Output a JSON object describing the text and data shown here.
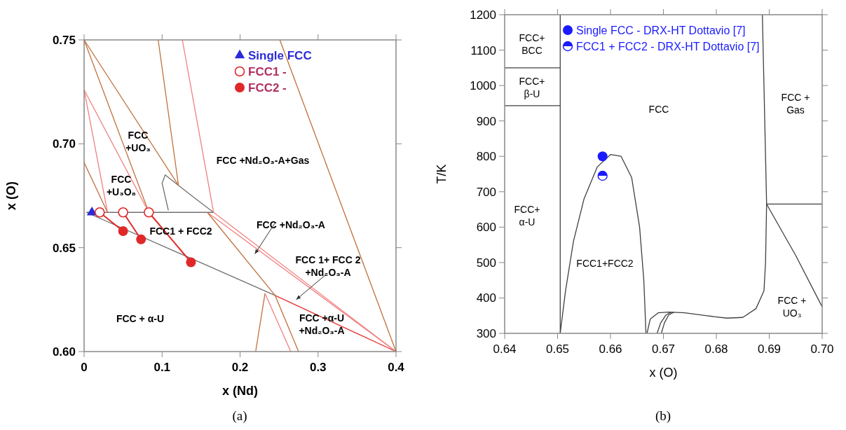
{
  "chart_data": [
    {
      "type": "scatter",
      "xlabel": "x (Nd)",
      "ylabel": "x (O)",
      "xlim": [
        0,
        0.4
      ],
      "ylim": [
        0.6,
        0.75
      ],
      "xticks": [
        0,
        0.1,
        0.2,
        0.3,
        0.4
      ],
      "yticks": [
        {
          "value": 0.6,
          "label": "0.60"
        },
        0.65,
        {
          "value": 0.7,
          "label": "0.70"
        },
        0.75
      ],
      "legend": "top right",
      "grid": false,
      "series": [
        {
          "type": "line",
          "color": "#707070",
          "x": [
            0.003,
            0.245
          ],
          "values": [
            0.667,
            0.627
          ]
        },
        {
          "type": "line",
          "color": "#707070",
          "x": [
            0.003,
            0.166
          ],
          "values": [
            0.667,
            0.667
          ]
        },
        {
          "type": "line",
          "color": "#707070",
          "x": [
            0.108,
            0.1,
            0.104,
            0.121,
            0.145,
            0.166
          ],
          "values": [
            0.668,
            0.681,
            0.685,
            0.68,
            0.673,
            0.667
          ]
        },
        {
          "type": "line",
          "color": "#e83030",
          "x": [
            0.245,
            0.4
          ],
          "values": [
            0.627,
            0.6
          ]
        },
        {
          "type": "line",
          "color": "#f08080",
          "x": [
            0.158,
            0.4
          ],
          "values": [
            0.667,
            0.6
          ]
        },
        {
          "type": "line",
          "color": "#f08080",
          "x": [
            0.166,
            0.4
          ],
          "values": [
            0.667,
            0.6
          ]
        },
        {
          "type": "line",
          "color": "#c0703a",
          "x": [
            0.251,
            0.4
          ],
          "values": [
            0.75,
            0.6
          ]
        },
        {
          "type": "line",
          "color": "#c0703a",
          "x": [
            0,
            0.121
          ],
          "values": [
            0.75,
            0.68
          ]
        },
        {
          "type": "line",
          "color": "#c0703a",
          "x": [
            0,
            0.083
          ],
          "values": [
            0.75,
            0.667
          ]
        },
        {
          "type": "line",
          "color": "#f08080",
          "x": [
            0,
            0.083
          ],
          "values": [
            0.726,
            0.667
          ]
        },
        {
          "type": "line",
          "color": "#f08080",
          "x": [
            0,
            0.03
          ],
          "values": [
            0.726,
            0.667
          ]
        },
        {
          "type": "line",
          "color": "#c0703a",
          "x": [
            0,
            0.03
          ],
          "values": [
            0.691,
            0.667
          ]
        },
        {
          "type": "line",
          "color": "#c0703a",
          "x": [
            0.095,
            0.121
          ],
          "values": [
            0.75,
            0.68
          ]
        },
        {
          "type": "line",
          "color": "#f08080",
          "x": [
            0.126,
            0.166
          ],
          "values": [
            0.75,
            0.667
          ]
        },
        {
          "type": "line",
          "color": "#c0703a",
          "x": [
            0.22,
            0.232
          ],
          "values": [
            0.6,
            0.628
          ]
        },
        {
          "type": "line",
          "color": "#f08080",
          "x": [
            0.265,
            0.232
          ],
          "values": [
            0.6,
            0.628
          ]
        },
        {
          "type": "line",
          "color": "#c0703a",
          "x": [
            0.158,
            0.245,
            0.275
          ],
          "values": [
            0.667,
            0.627,
            0.6
          ]
        },
        {
          "type": "line",
          "color": "#e02828",
          "x": [
            0.02,
            0.05
          ],
          "values": [
            0.667,
            0.658
          ]
        },
        {
          "type": "line",
          "color": "#e02828",
          "x": [
            0.05,
            0.073
          ],
          "values": [
            0.667,
            0.654
          ]
        },
        {
          "type": "line",
          "color": "#e02828",
          "x": [
            0.083,
            0.137
          ],
          "values": [
            0.667,
            0.643
          ]
        },
        {
          "type": "scatter",
          "name": "Single FCC",
          "color": "#2a2ad8",
          "marker": "triangle",
          "x": [
            0.01
          ],
          "values": [
            0.667
          ]
        },
        {
          "type": "scatter",
          "name": "FCC1 -",
          "color": "#e02828",
          "marker": "open circle",
          "x": [
            0.02,
            0.05,
            0.083
          ],
          "values": [
            0.667,
            0.667,
            0.667
          ]
        },
        {
          "type": "scatter",
          "name": "FCC2 -",
          "color": "#e02828",
          "marker": "circle",
          "x": [
            0.05,
            0.073,
            0.137
          ],
          "values": [
            0.658,
            0.654,
            0.643
          ]
        }
      ],
      "annotations": [
        "FCC\n+UO₃",
        "FCC\n+U₃O₈",
        "FCC +Nd₂O₃-A+Gas",
        "FCC1 + FCC2",
        "FCC +Nd₂O₃-A",
        "FCC 1+ FCC 2\n+Nd₂O₃-A",
        "FCC +  α-U",
        "FCC +α-U\n+Nd₂O₃-A",
        "(a)"
      ]
    },
    {
      "type": "scatter",
      "xlabel": "x (O)",
      "ylabel": "T/K",
      "xlim": [
        0.64,
        0.7
      ],
      "ylim": [
        300,
        1200
      ],
      "xticks": [
        0.64,
        0.65,
        0.66,
        0.67,
        0.68,
        0.69,
        {
          "value": 0.7,
          "label": "0.70"
        }
      ],
      "yticks": [
        300,
        400,
        500,
        600,
        700,
        800,
        900,
        1000,
        1100,
        1200
      ],
      "legend": "top left",
      "grid": false,
      "series": [
        {
          "type": "line",
          "color": "#404040",
          "x": [
            0.6505,
            0.6505
          ],
          "values": [
            300,
            1200
          ]
        },
        {
          "type": "line",
          "color": "#404040",
          "x": [
            0.64,
            0.6505
          ],
          "values": [
            1050,
            1050
          ]
        },
        {
          "type": "line",
          "color": "#404040",
          "x": [
            0.64,
            0.6505
          ],
          "values": [
            943,
            943
          ]
        },
        {
          "type": "line",
          "color": "#404040",
          "x": [
            0.6505,
            0.6515,
            0.653,
            0.655,
            0.6575,
            0.66,
            0.662,
            0.664,
            0.6655,
            0.6663,
            0.6667
          ],
          "values": [
            300,
            420,
            560,
            680,
            770,
            805,
            800,
            740,
            600,
            450,
            300
          ]
        },
        {
          "type": "line",
          "color": "#404040",
          "x": [
            0.6887,
            0.6893,
            0.6895,
            0.6893,
            0.689,
            0.6875,
            0.685,
            0.682,
            0.678,
            0.674,
            0.671,
            0.669,
            0.6675,
            0.6669
          ],
          "values": [
            1200,
            800,
            665,
            500,
            420,
            370,
            345,
            343,
            350,
            358,
            360,
            358,
            340,
            300
          ]
        },
        {
          "type": "line",
          "color": "#404040",
          "x": [
            0.6688,
            0.6695,
            0.6705,
            0.6715
          ],
          "values": [
            300,
            330,
            352,
            360
          ]
        },
        {
          "type": "line",
          "color": "#404040",
          "x": [
            0.6696,
            0.6702,
            0.671,
            0.672
          ],
          "values": [
            300,
            330,
            352,
            360
          ]
        },
        {
          "type": "line",
          "color": "#404040",
          "x": [
            0.6895,
            0.7
          ],
          "values": [
            665,
            665
          ]
        },
        {
          "type": "line",
          "color": "#404040",
          "x": [
            0.6895,
            0.695,
            0.7
          ],
          "values": [
            665,
            520,
            375
          ]
        },
        {
          "type": "scatter",
          "name": "Single FCC - DRX-HT Dottavio [7]",
          "color": "#1a1aff",
          "marker": "circle",
          "x": [
            0.6585
          ],
          "values": [
            800
          ]
        },
        {
          "type": "scatter",
          "name": "FCC1 + FCC2 - DRX-HT Dottavio [7]",
          "color": "#1a1aff",
          "marker": "half circle",
          "x": [
            0.6585
          ],
          "values": [
            745
          ]
        }
      ],
      "annotations": [
        "FCC+\nBCC",
        "FCC+\nβ-U",
        "FCC",
        "FCC +\nGas",
        "FCC+\nα-U",
        "FCC1+FCC2",
        "FCC +\nUO₃",
        "(b)"
      ]
    }
  ]
}
